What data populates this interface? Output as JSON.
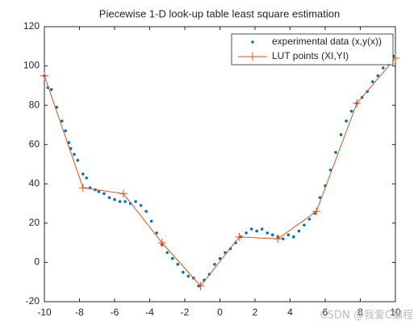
{
  "chart_data": {
    "type": "scatter",
    "title": "Piecewise 1-D look-up table least square estimation",
    "xlim": [
      -10,
      10
    ],
    "xticks": [
      -10,
      -8,
      -6,
      -4,
      -2,
      0,
      2,
      4,
      6,
      8,
      10
    ],
    "ylim": [
      -20,
      120
    ],
    "yticks": [
      -20,
      0,
      20,
      40,
      60,
      80,
      100,
      120
    ],
    "legend": "top-right",
    "watermark": "CSDN @我爱C编程",
    "series": [
      {
        "name": "experimental data (x,y(x))",
        "type": "scatter",
        "color": "#0072bd",
        "x": [
          -10,
          -9.8,
          -9.6,
          -9.3,
          -9.0,
          -8.8,
          -8.6,
          -8.5,
          -8.3,
          -8.1,
          -7.8,
          -7.6,
          -7.4,
          -7.1,
          -6.9,
          -6.6,
          -6.3,
          -6.0,
          -5.7,
          -5.4,
          -5.1,
          -4.8,
          -4.5,
          -4.2,
          -3.9,
          -3.6,
          -3.3,
          -3.0,
          -2.7,
          -2.4,
          -2.1,
          -1.8,
          -1.5,
          -1.2,
          -0.9,
          -0.6,
          -0.3,
          0,
          0.3,
          0.6,
          0.9,
          1.2,
          1.5,
          1.8,
          2.1,
          2.4,
          2.7,
          3.0,
          3.3,
          3.6,
          3.9,
          4.2,
          4.5,
          4.8,
          5.1,
          5.4,
          5.7,
          6.0,
          6.3,
          6.6,
          6.9,
          7.2,
          7.5,
          7.8,
          8.1,
          8.4,
          8.7,
          9.0,
          9.3,
          9.6,
          9.9
        ],
        "values": [
          95,
          89,
          88,
          79,
          72,
          67,
          61,
          58,
          55,
          52,
          45,
          43,
          38,
          37,
          36,
          35,
          33,
          32,
          31,
          31,
          30,
          31,
          29,
          26,
          21,
          15,
          9,
          5,
          2,
          -1,
          -5,
          -7,
          -8,
          -12,
          -9,
          -6,
          -1,
          2,
          5,
          7,
          10,
          13,
          15,
          17,
          16,
          17,
          15,
          14,
          13,
          12,
          14,
          13,
          16,
          19,
          22,
          25,
          33,
          39,
          47,
          56,
          65,
          72,
          77,
          81,
          84,
          87,
          92,
          95,
          99,
          101,
          105
        ]
      },
      {
        "name": "LUT points (XI,YI)",
        "type": "line",
        "color": "#d95319",
        "x": [
          -10,
          -7.8,
          -5.5,
          -3.3,
          -1.1,
          1.1,
          3.3,
          5.5,
          7.8,
          10
        ],
        "values": [
          95,
          38,
          35,
          10,
          -12,
          13,
          12,
          26,
          81,
          104
        ]
      }
    ]
  }
}
